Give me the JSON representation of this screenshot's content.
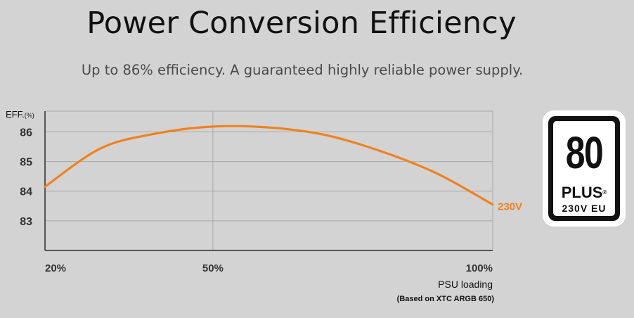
{
  "header": {
    "title": "Power Conversion Efficiency",
    "subtitle": "Up to 86% efficiency. A guaranteed highly reliable power supply."
  },
  "badge": {
    "number": "80",
    "plus": "PLUS",
    "registered": "®",
    "rating": "230V EU"
  },
  "colors": {
    "background": "#d3d3d3",
    "curve": "#f0821e",
    "grid": "#a9a9a9",
    "axis": "#555555"
  },
  "chart_data": {
    "type": "line",
    "title": "",
    "ylabel": "EFF.",
    "ylabel_unit": "(%)",
    "xlabel": "PSU loading",
    "note": "(Based on XTC ARGB 650)",
    "x_ticks": [
      "20%",
      "50%",
      "100%"
    ],
    "y_ticks": [
      83,
      84,
      85,
      86
    ],
    "xlim": [
      20,
      100
    ],
    "ylim": [
      82,
      86.7
    ],
    "series": [
      {
        "name": "230V",
        "x": [
          20,
          30,
          40,
          50,
          60,
          70,
          80,
          90,
          100
        ],
        "y": [
          84.15,
          85.45,
          85.95,
          86.18,
          86.15,
          85.9,
          85.35,
          84.6,
          83.55
        ]
      }
    ]
  }
}
